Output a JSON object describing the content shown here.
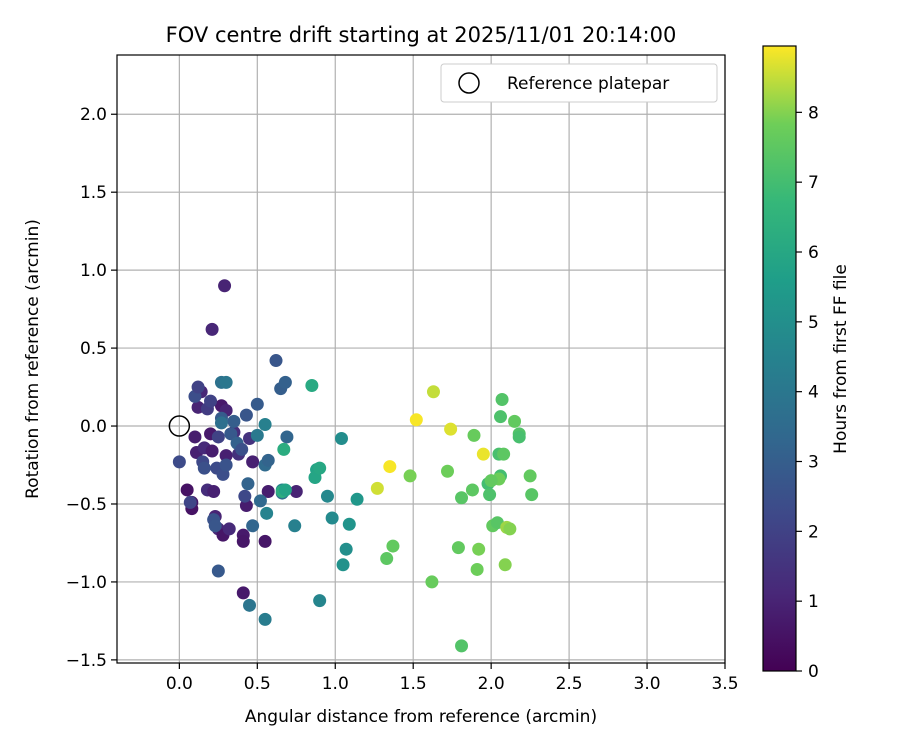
{
  "chart_data": {
    "type": "scatter",
    "title": "FOV centre drift starting at 2025/11/01 20:14:00",
    "xlabel": "Angular distance from reference (arcmin)",
    "ylabel": "Rotation from reference (arcmin)",
    "xlim": [
      -0.4,
      3.5
    ],
    "ylim": [
      -1.52,
      2.38
    ],
    "xticks": [
      "0.0",
      "0.5",
      "1.0",
      "1.5",
      "2.0",
      "2.5",
      "3.0",
      "3.5"
    ],
    "yticks": [
      "−1.5",
      "−1.0",
      "−0.5",
      "0.0",
      "0.5",
      "1.0",
      "1.5",
      "2.0"
    ],
    "grid": true,
    "legend": {
      "position": "top-right",
      "entries": [
        "Reference platepar"
      ]
    },
    "reference_point": {
      "x": 0.0,
      "y": 0.0,
      "label": "Reference platepar"
    },
    "colorbar": {
      "label": "Hours from first FF file",
      "ticks": [
        "0",
        "1",
        "2",
        "3",
        "4",
        "5",
        "6",
        "7",
        "8"
      ],
      "range": [
        0,
        8.95
      ],
      "colormap": "viridis"
    },
    "points": [
      [
        0.29,
        0.9,
        1.0
      ],
      [
        0.21,
        0.62,
        1.1
      ],
      [
        0.05,
        -0.41,
        0.5
      ],
      [
        0.08,
        -0.49,
        0.6
      ],
      [
        0.08,
        -0.53,
        0.5
      ],
      [
        0.1,
        -0.07,
        0.8
      ],
      [
        0.11,
        -0.17,
        0.9
      ],
      [
        0.12,
        0.12,
        1.0
      ],
      [
        0.14,
        0.22,
        1.1
      ],
      [
        0.16,
        -0.14,
        1.2
      ],
      [
        0.18,
        -0.41,
        1.3
      ],
      [
        0.2,
        -0.05,
        0.7
      ],
      [
        0.21,
        -0.16,
        0.8
      ],
      [
        0.22,
        -0.42,
        0.9
      ],
      [
        0.23,
        -0.58,
        1.0
      ],
      [
        0.25,
        -0.66,
        1.1
      ],
      [
        0.27,
        0.13,
        0.7
      ],
      [
        0.28,
        -0.7,
        0.6
      ],
      [
        0.3,
        -0.19,
        0.9
      ],
      [
        0.3,
        0.1,
        1.0
      ],
      [
        0.32,
        -0.66,
        1.2
      ],
      [
        0.35,
        -0.04,
        1.3
      ],
      [
        0.38,
        -0.18,
        1.4
      ],
      [
        0.41,
        -0.7,
        0.7
      ],
      [
        0.41,
        -0.74,
        0.6
      ],
      [
        0.43,
        -0.51,
        0.8
      ],
      [
        0.45,
        -0.08,
        1.5
      ],
      [
        0.47,
        -0.23,
        0.9
      ],
      [
        0.55,
        -0.74,
        0.6
      ],
      [
        0.57,
        -0.42,
        0.8
      ],
      [
        0.75,
        -0.42,
        1.0
      ],
      [
        0.41,
        -1.07,
        0.7
      ],
      [
        0.0,
        -0.23,
        2.3
      ],
      [
        0.07,
        -0.49,
        2.1
      ],
      [
        0.1,
        0.19,
        2.4
      ],
      [
        0.12,
        0.25,
        2.0
      ],
      [
        0.15,
        -0.23,
        2.2
      ],
      [
        0.16,
        -0.27,
        2.5
      ],
      [
        0.18,
        0.11,
        1.8
      ],
      [
        0.2,
        0.16,
        2.0
      ],
      [
        0.22,
        -0.6,
        2.6
      ],
      [
        0.23,
        -0.64,
        2.7
      ],
      [
        0.24,
        -0.27,
        2.3
      ],
      [
        0.25,
        -0.07,
        2.0
      ],
      [
        0.25,
        -0.93,
        2.8
      ],
      [
        0.27,
        0.05,
        2.9
      ],
      [
        0.28,
        -0.31,
        2.4
      ],
      [
        0.3,
        -0.25,
        2.6
      ],
      [
        0.33,
        -0.05,
        2.8
      ],
      [
        0.35,
        0.03,
        3.0
      ],
      [
        0.37,
        -0.11,
        3.1
      ],
      [
        0.4,
        -0.15,
        2.5
      ],
      [
        0.42,
        -0.45,
        2.2
      ],
      [
        0.43,
        0.07,
        2.7
      ],
      [
        0.44,
        -0.37,
        3.2
      ],
      [
        0.47,
        -0.64,
        3.3
      ],
      [
        0.5,
        0.14,
        2.9
      ],
      [
        0.52,
        -0.48,
        3.4
      ],
      [
        0.55,
        -0.25,
        3.5
      ],
      [
        0.57,
        -0.22,
        3.2
      ],
      [
        0.62,
        0.42,
        2.7
      ],
      [
        0.65,
        0.24,
        3.0
      ],
      [
        0.68,
        0.28,
        3.1
      ],
      [
        0.69,
        -0.07,
        3.3
      ],
      [
        0.66,
        -0.43,
        3.6
      ],
      [
        0.27,
        0.28,
        3.8
      ],
      [
        0.3,
        0.28,
        4.0
      ],
      [
        0.27,
        0.02,
        3.7
      ],
      [
        0.45,
        -1.15,
        3.9
      ],
      [
        0.55,
        -1.24,
        4.2
      ],
      [
        0.5,
        -0.06,
        4.1
      ],
      [
        0.55,
        0.01,
        4.4
      ],
      [
        0.56,
        -0.56,
        4.5
      ],
      [
        0.66,
        -0.41,
        4.6
      ],
      [
        0.74,
        -0.64,
        4.4
      ],
      [
        0.95,
        -0.45,
        4.7
      ],
      [
        0.98,
        -0.59,
        4.8
      ],
      [
        1.04,
        -0.08,
        4.9
      ],
      [
        1.05,
        -0.89,
        5.1
      ],
      [
        1.07,
        -0.79,
        5.0
      ],
      [
        1.09,
        -0.63,
        5.2
      ],
      [
        1.14,
        -0.47,
        5.3
      ],
      [
        0.9,
        -1.12,
        4.6
      ],
      [
        0.88,
        -0.28,
        5.8
      ],
      [
        0.87,
        -0.33,
        5.9
      ],
      [
        0.9,
        -0.27,
        6.0
      ],
      [
        0.85,
        0.26,
        6.1
      ],
      [
        0.67,
        -0.15,
        6.2
      ],
      [
        0.66,
        -0.42,
        6.3
      ],
      [
        0.68,
        -0.41,
        5.8
      ],
      [
        1.33,
        -0.85,
        7.5
      ],
      [
        1.37,
        -0.77,
        7.6
      ],
      [
        1.62,
        -1.0,
        7.7
      ],
      [
        1.48,
        -0.32,
        7.9
      ],
      [
        1.72,
        -0.29,
        7.8
      ],
      [
        1.79,
        -0.78,
        7.6
      ],
      [
        1.81,
        -0.46,
        7.4
      ],
      [
        1.81,
        -1.41,
        7.3
      ],
      [
        1.88,
        -0.41,
        7.5
      ],
      [
        1.89,
        -0.06,
        7.7
      ],
      [
        1.91,
        -0.92,
        7.8
      ],
      [
        1.92,
        -0.79,
        7.9
      ],
      [
        1.98,
        -0.37,
        7.0
      ],
      [
        1.99,
        -0.44,
        7.2
      ],
      [
        2.01,
        -0.64,
        7.6
      ],
      [
        2.04,
        -0.62,
        7.4
      ],
      [
        2.05,
        -0.18,
        7.1
      ],
      [
        2.06,
        0.06,
        7.2
      ],
      [
        2.06,
        -0.32,
        7.0
      ],
      [
        2.07,
        0.17,
        7.3
      ],
      [
        2.08,
        -0.18,
        7.5
      ],
      [
        2.09,
        -0.89,
        8.0
      ],
      [
        2.1,
        -0.65,
        8.2
      ],
      [
        2.12,
        -0.66,
        8.0
      ],
      [
        2.15,
        0.03,
        7.6
      ],
      [
        2.18,
        -0.05,
        7.3
      ],
      [
        2.18,
        -0.07,
        7.1
      ],
      [
        2.25,
        -0.32,
        7.6
      ],
      [
        2.26,
        -0.44,
        7.4
      ],
      [
        1.63,
        0.22,
        8.5
      ],
      [
        1.74,
        -0.02,
        8.7
      ],
      [
        1.95,
        -0.18,
        8.8
      ],
      [
        1.52,
        0.04,
        8.9
      ],
      [
        1.35,
        -0.26,
        8.9
      ],
      [
        1.27,
        -0.4,
        8.6
      ],
      [
        2.05,
        -0.34,
        7.8
      ],
      [
        2.0,
        -0.35,
        7.6
      ]
    ]
  }
}
